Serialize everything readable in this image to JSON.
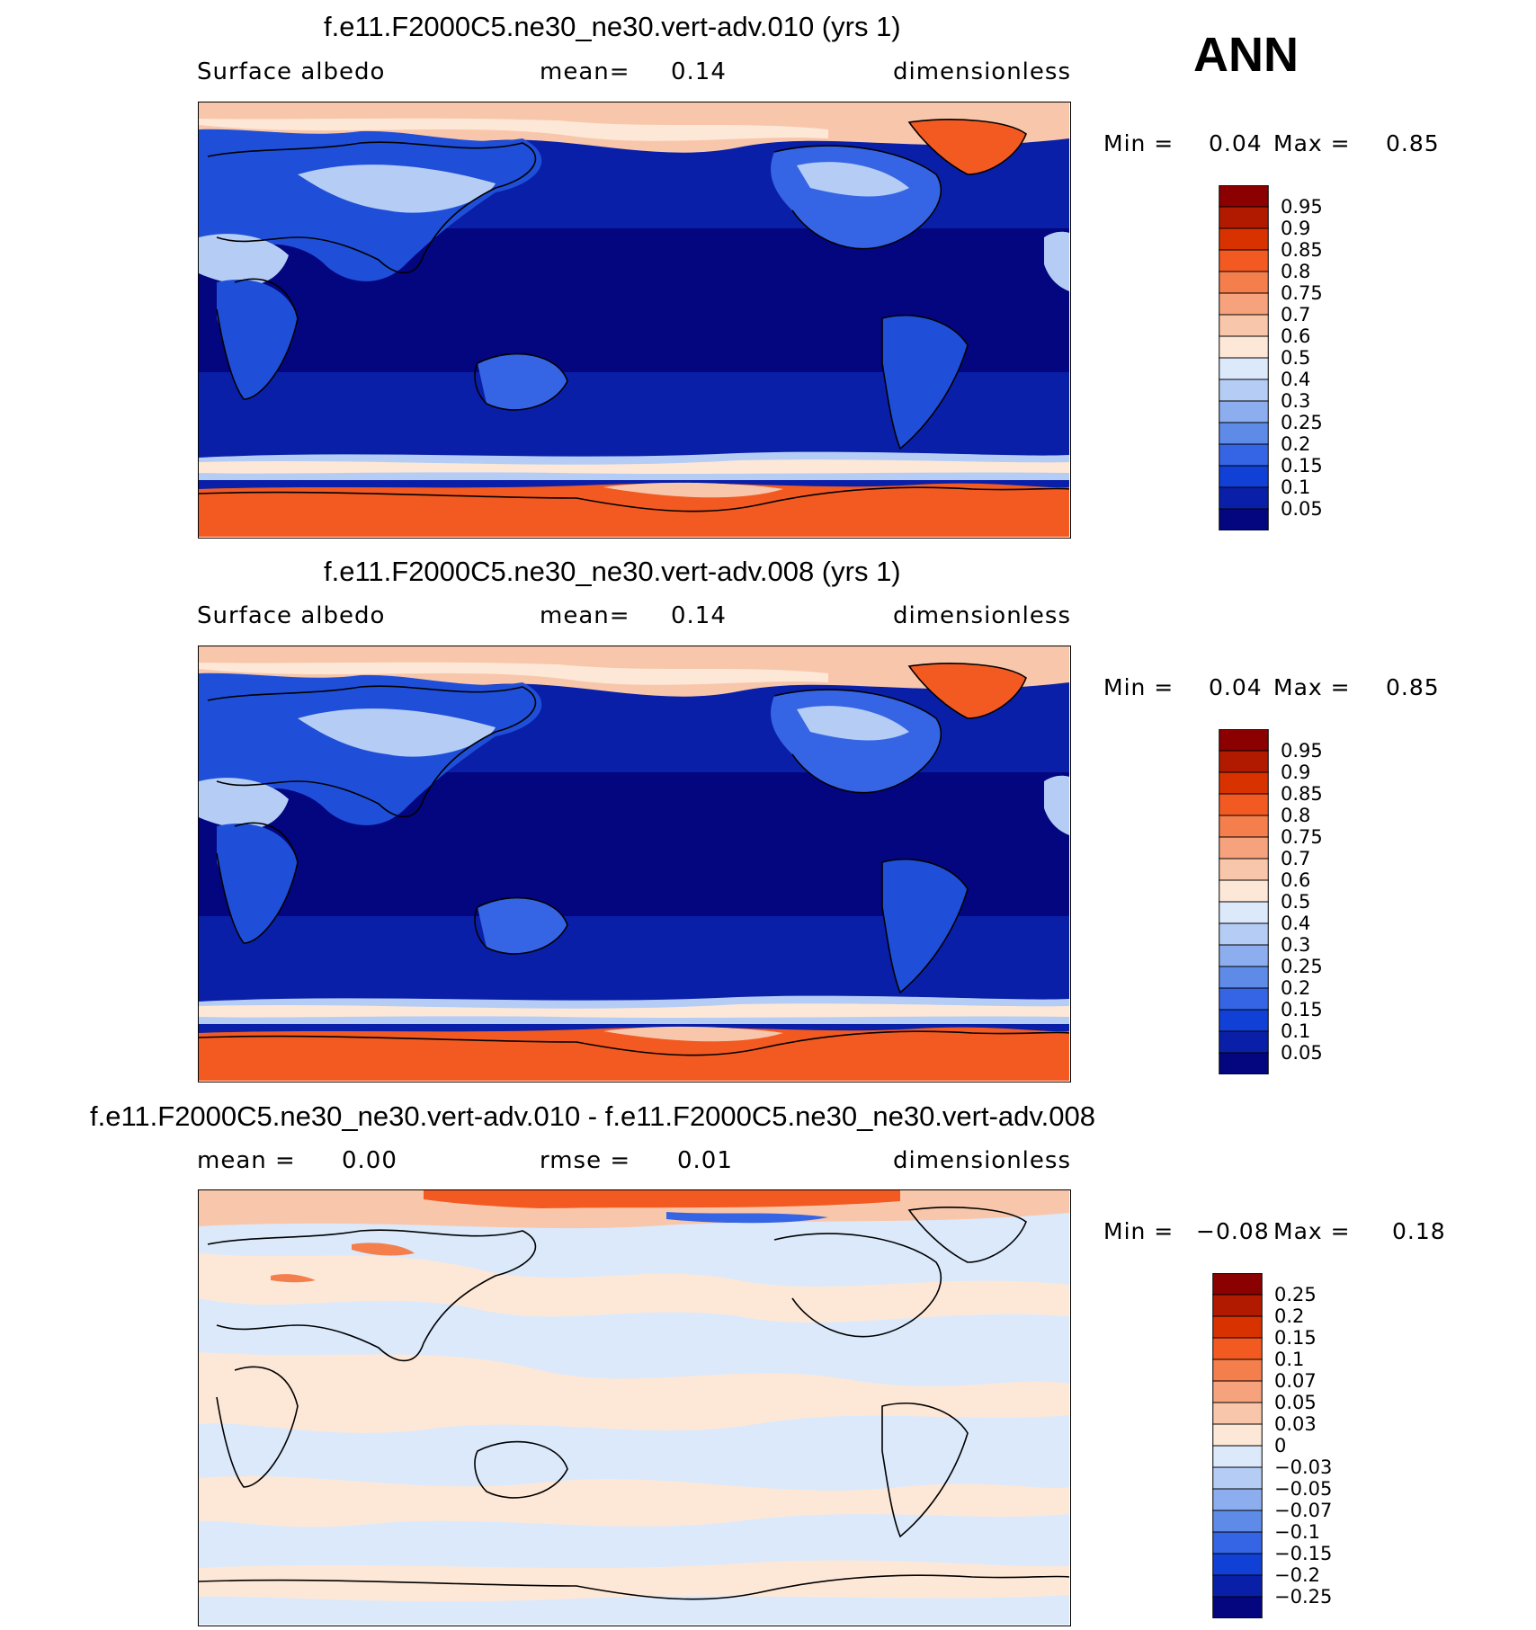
{
  "season": "ANN",
  "panels": [
    {
      "id": "top",
      "title": "f.e11.F2000C5.ne30_ne30.vert-adv.010 (yrs 1)",
      "left": "Surface  albedo",
      "mid_label": "mean=",
      "mid_value": "0.14",
      "right": "dimensionless",
      "min_label": "Min  =",
      "min_value": "0.04",
      "max_label": "Max  =",
      "max_value": "0.85",
      "legend_labels": [
        "0.95",
        "0.9",
        "0.85",
        "0.8",
        "0.75",
        "0.7",
        "0.6",
        "0.5",
        "0.4",
        "0.3",
        "0.25",
        "0.2",
        "0.15",
        "0.1",
        "0.05"
      ]
    },
    {
      "id": "middle",
      "title": "f.e11.F2000C5.ne30_ne30.vert-adv.008 (yrs 1)",
      "left": "Surface  albedo",
      "mid_label": "mean=",
      "mid_value": "0.14",
      "right": "dimensionless",
      "min_label": "Min  =",
      "min_value": "0.04",
      "max_label": "Max  =",
      "max_value": "0.85",
      "legend_labels": [
        "0.95",
        "0.9",
        "0.85",
        "0.8",
        "0.75",
        "0.7",
        "0.6",
        "0.5",
        "0.4",
        "0.3",
        "0.25",
        "0.2",
        "0.15",
        "0.1",
        "0.05"
      ]
    },
    {
      "id": "difference",
      "title": "f.e11.F2000C5.ne30_ne30.vert-adv.010 - f.e11.F2000C5.ne30_ne30.vert-adv.008",
      "left": "mean  =",
      "left_value": "0.00",
      "mid_label": "rmse  =",
      "mid_value": "0.01",
      "right": "dimensionless",
      "min_label": "Min  =",
      "min_value": "−0.08",
      "max_label": "Max  =",
      "max_value": "0.18",
      "legend_labels": [
        "0.25",
        "0.2",
        "0.15",
        "0.1",
        "0.07",
        "0.05",
        "0.03",
        "0",
        "−0.03",
        "−0.05",
        "−0.07",
        "−0.1",
        "−0.15",
        "−0.2",
        "−0.25"
      ]
    }
  ],
  "colors": {
    "colorbar": [
      "#8b0000",
      "#b21a00",
      "#d83200",
      "#f25a22",
      "#f47e4c",
      "#f6a27c",
      "#f8c7ab",
      "#fde8d8",
      "#dbe9fb",
      "#b5cdf5",
      "#8caeee",
      "#5f8be8",
      "#3565e4",
      "#1040d6",
      "#0a1fa8",
      "#03067f"
    ],
    "ocean_deep": "#03067f",
    "ocean": "#0a1fa8",
    "land": "#1f4fd8",
    "snow": "#f25a22",
    "diff_pos": "#fde8d8",
    "diff_neg": "#dbe9fb"
  }
}
